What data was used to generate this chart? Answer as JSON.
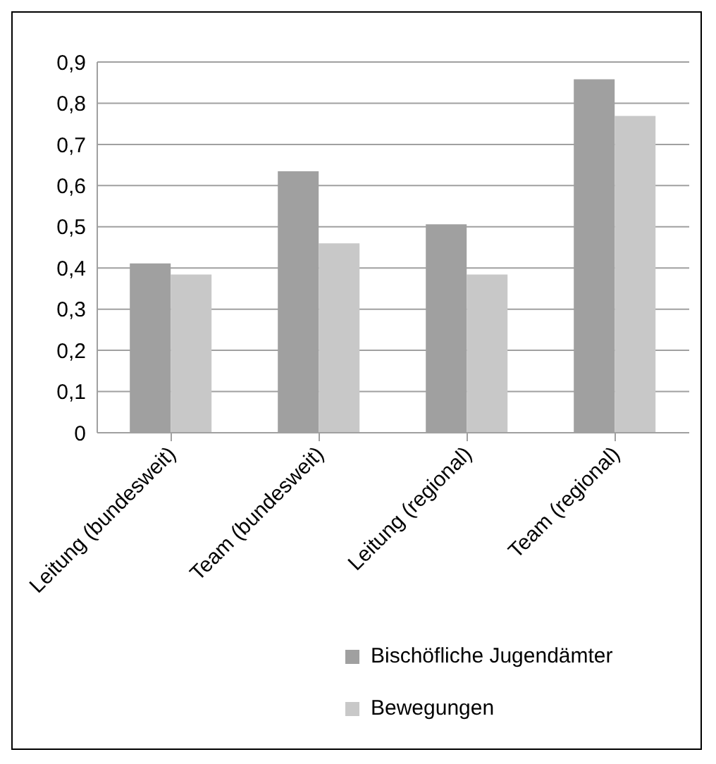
{
  "chart_data": {
    "type": "bar",
    "categories": [
      "Leitung (bundesweit)",
      "Team (bundesweit)",
      "Leitung (regional)",
      "Team (regional)"
    ],
    "series": [
      {
        "name": "Bischöfliche Jugendämter",
        "color": "#a0a0a0",
        "values": [
          0.411,
          0.635,
          0.506,
          0.858
        ]
      },
      {
        "name": "Bewegungen",
        "color": "#c8c8c8",
        "values": [
          0.384,
          0.46,
          0.384,
          0.769
        ]
      }
    ],
    "ylim": [
      0,
      0.9
    ],
    "yticks": [
      {
        "value": 0,
        "label": "0"
      },
      {
        "value": 0.1,
        "label": "0,1"
      },
      {
        "value": 0.2,
        "label": "0,2"
      },
      {
        "value": 0.3,
        "label": "0,3"
      },
      {
        "value": 0.4,
        "label": "0,4"
      },
      {
        "value": 0.5,
        "label": "0,5"
      },
      {
        "value": 0.6,
        "label": "0,6"
      },
      {
        "value": 0.7,
        "label": "0,7"
      },
      {
        "value": 0.8,
        "label": "0,8"
      },
      {
        "value": 0.9,
        "label": "0,9"
      }
    ],
    "grid": "y",
    "legend": "bottom right"
  }
}
